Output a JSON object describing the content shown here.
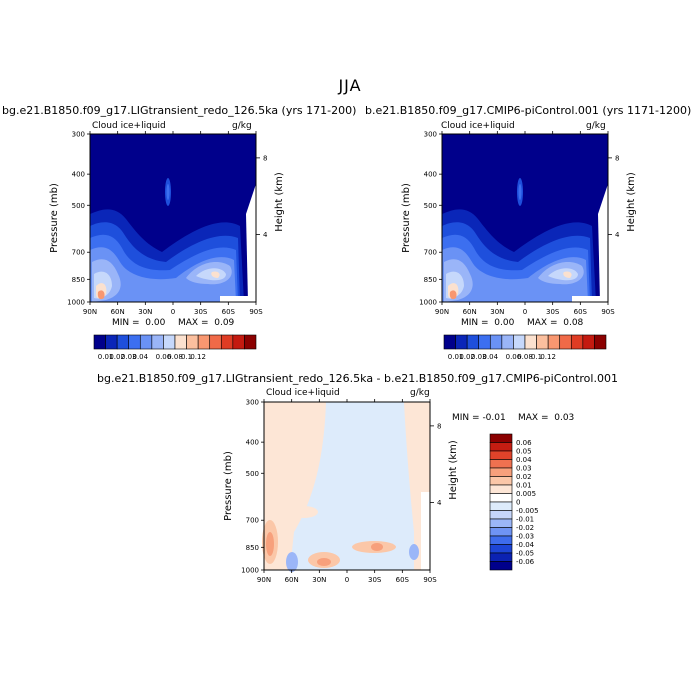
{
  "figure": {
    "title": "JJA",
    "field_label": "Cloud ice+liquid",
    "units": "g/kg",
    "left_y_label": "Pressure (mb)",
    "right_y_label": "Height (km)"
  },
  "colors": {
    "seq": [
      "#00008b",
      "#0a26b8",
      "#1e4fdc",
      "#3c6ff0",
      "#6a92f5",
      "#9ab5f8",
      "#c6d8fb",
      "#fbe1cf",
      "#fbbf9e",
      "#f89770",
      "#f06a48",
      "#df3c24",
      "#c41a10",
      "#8b0000"
    ],
    "diff": [
      "#00008b",
      "#0b22b2",
      "#1d45d6",
      "#3e6cec",
      "#6f94f4",
      "#9bb6f8",
      "#c6d6fa",
      "#ddebfb",
      "#ffffff",
      "#fde6d6",
      "#fbc7a8",
      "#f7a07c",
      "#ef7150",
      "#df432a",
      "#c51d12",
      "#8b0000"
    ]
  },
  "chart_data": [
    {
      "type": "heatmap",
      "title": "bg.e21.B1850.f09_g17.LIGtransient_redo_126.5ka (yrs 171-200)",
      "x": [
        "90N",
        "60N",
        "30N",
        "0",
        "30S",
        "60S",
        "90S"
      ],
      "y_pressure": [
        300,
        400,
        500,
        700,
        850,
        1000
      ],
      "y_height_km": [
        8,
        4
      ],
      "min_label": "MIN =",
      "min": "0.00",
      "max_label": "MAX =",
      "max": "0.09",
      "colorbar_ticks": [
        "0.01",
        "0.02",
        "0.03",
        "0.04",
        "0.06",
        "0.08",
        "0.1",
        "0.12"
      ]
    },
    {
      "type": "heatmap",
      "title": "b.e21.B1850.f09_g17.CMIP6-piControl.001 (yrs 1171-1200)",
      "x": [
        "90N",
        "60N",
        "30N",
        "0",
        "30S",
        "60S",
        "90S"
      ],
      "y_pressure": [
        300,
        400,
        500,
        700,
        850,
        1000
      ],
      "y_height_km": [
        8,
        4
      ],
      "min_label": "MIN =",
      "min": "0.00",
      "max_label": "MAX =",
      "max": "0.08",
      "colorbar_ticks": [
        "0.01",
        "0.02",
        "0.03",
        "0.04",
        "0.06",
        "0.08",
        "0.1",
        "0.12"
      ]
    },
    {
      "type": "heatmap",
      "title": "bg.e21.B1850.f09_g17.LIGtransient_redo_126.5ka - b.e21.B1850.f09_g17.CMIP6-piControl.001",
      "x": [
        "90N",
        "60N",
        "30N",
        "0",
        "30S",
        "60S",
        "90S"
      ],
      "y_pressure": [
        300,
        400,
        500,
        700,
        850,
        1000
      ],
      "y_height_km": [
        8,
        4
      ],
      "min_label": "MIN =",
      "min": "-0.01",
      "max_label": "MAX =",
      "max": "0.03",
      "colorbar_ticks": [
        "0.06",
        "0.05",
        "0.04",
        "0.03",
        "0.02",
        "0.01",
        "0.005",
        "0",
        "-0.005",
        "-0.01",
        "-0.02",
        "-0.03",
        "-0.04",
        "-0.05",
        "-0.06"
      ]
    }
  ]
}
